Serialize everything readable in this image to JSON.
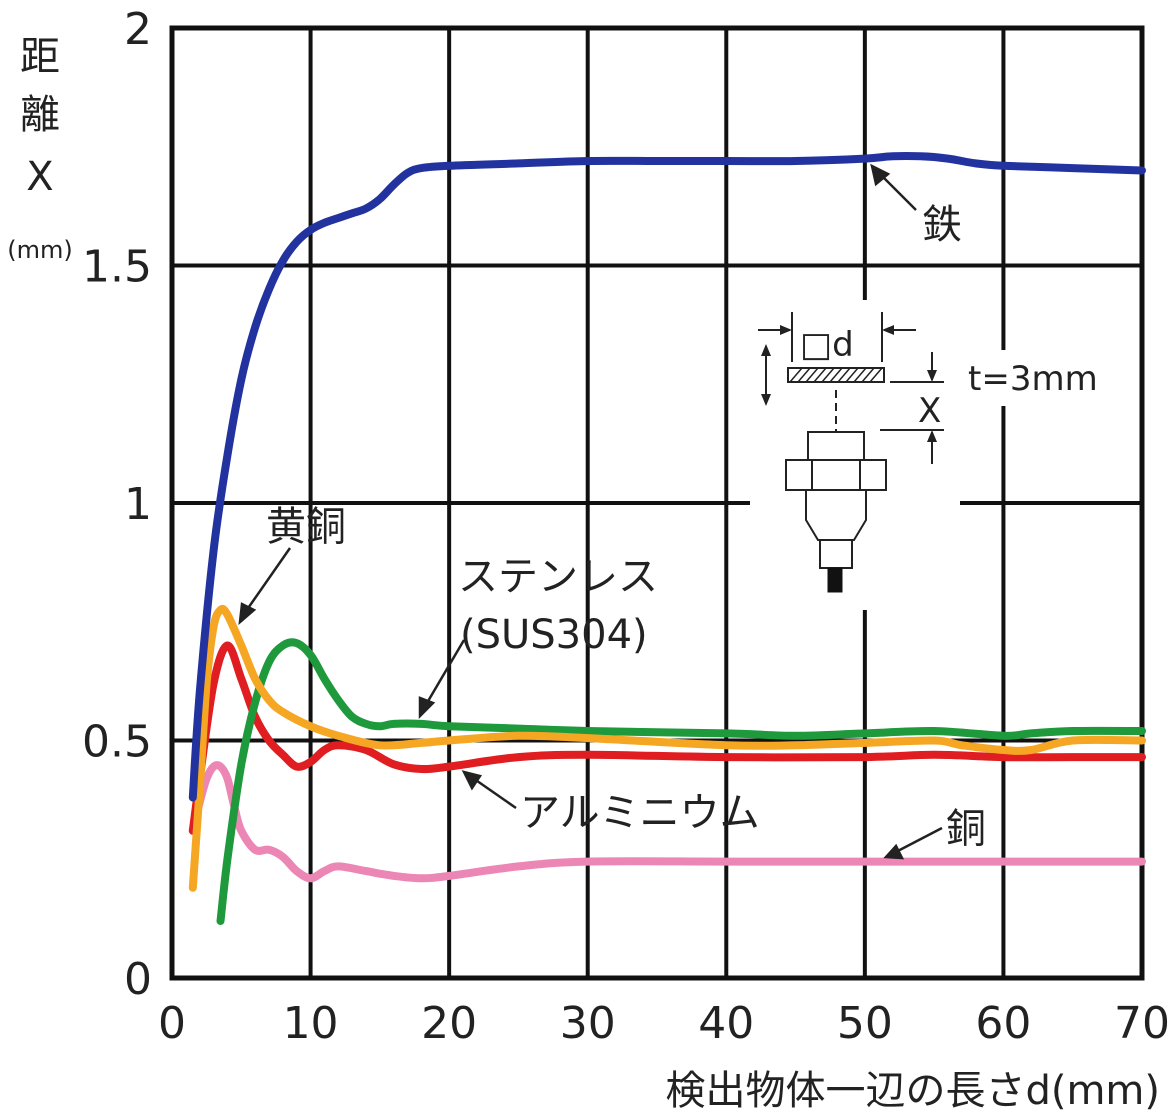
{
  "chart_data": {
    "type": "line",
    "xlabel": "検出物体一辺の長さd(mm)",
    "ylabel_chars": [
      "距",
      "離",
      "X",
      "(mm)"
    ],
    "xlim": [
      0,
      70
    ],
    "ylim": [
      0,
      2
    ],
    "x_ticks": [
      "0",
      "10",
      "20",
      "30",
      "40",
      "50",
      "60",
      "70"
    ],
    "y_ticks": [
      "0",
      "0.5",
      "1",
      "1.5",
      "2"
    ],
    "x_tick_values": [
      0,
      10,
      20,
      30,
      40,
      50,
      60,
      70
    ],
    "y_tick_values": [
      0,
      0.5,
      1,
      1.5,
      2
    ],
    "grid": true,
    "series": [
      {
        "name": "鉄",
        "color": "#2233a0",
        "x": [
          1.5,
          2,
          3,
          4,
          5,
          6,
          7,
          8,
          9,
          10,
          11,
          12,
          13,
          14,
          15,
          16,
          17,
          18,
          20,
          25,
          30,
          35,
          40,
          45,
          50,
          52,
          54,
          56,
          58,
          60,
          65,
          70
        ],
        "y": [
          0.38,
          0.6,
          0.9,
          1.1,
          1.26,
          1.37,
          1.45,
          1.51,
          1.55,
          1.575,
          1.59,
          1.6,
          1.61,
          1.62,
          1.64,
          1.67,
          1.695,
          1.705,
          1.71,
          1.715,
          1.72,
          1.72,
          1.72,
          1.72,
          1.725,
          1.73,
          1.73,
          1.725,
          1.715,
          1.71,
          1.705,
          1.7
        ]
      },
      {
        "name": "黄銅",
        "color": "#f5a623",
        "x": [
          1.5,
          2,
          2.5,
          3,
          3.5,
          4,
          5,
          6,
          7,
          8,
          10,
          12,
          15,
          18,
          20,
          25,
          30,
          40,
          45,
          50,
          55,
          57,
          60,
          62,
          65,
          70
        ],
        "y": [
          0.19,
          0.4,
          0.62,
          0.74,
          0.775,
          0.765,
          0.7,
          0.63,
          0.585,
          0.56,
          0.53,
          0.51,
          0.49,
          0.495,
          0.5,
          0.51,
          0.505,
          0.49,
          0.49,
          0.495,
          0.5,
          0.49,
          0.48,
          0.48,
          0.5,
          0.5
        ]
      },
      {
        "name": "ステンレス(SUS304)",
        "color": "#1e9a3c",
        "x": [
          3.5,
          4,
          5,
          6,
          7,
          8,
          9,
          10,
          11,
          12,
          13,
          14,
          15,
          16,
          18,
          20,
          25,
          30,
          40,
          45,
          50,
          55,
          60,
          62,
          65,
          70
        ],
        "y": [
          0.12,
          0.25,
          0.45,
          0.58,
          0.665,
          0.7,
          0.705,
          0.68,
          0.63,
          0.585,
          0.55,
          0.535,
          0.53,
          0.535,
          0.535,
          0.53,
          0.525,
          0.52,
          0.515,
          0.51,
          0.515,
          0.52,
          0.51,
          0.515,
          0.52,
          0.52
        ]
      },
      {
        "name": "アルミニウム",
        "color": "#e01d20",
        "x": [
          1.5,
          2,
          3,
          4,
          5,
          6,
          7,
          8,
          9,
          10,
          11,
          12,
          14,
          16,
          18,
          20,
          25,
          30,
          40,
          50,
          55,
          60,
          65,
          70
        ],
        "y": [
          0.31,
          0.42,
          0.62,
          0.7,
          0.63,
          0.55,
          0.5,
          0.47,
          0.445,
          0.455,
          0.48,
          0.49,
          0.48,
          0.45,
          0.44,
          0.445,
          0.465,
          0.47,
          0.465,
          0.465,
          0.47,
          0.465,
          0.465,
          0.465
        ]
      },
      {
        "name": "銅",
        "color": "#ec86b4",
        "x": [
          1.5,
          2,
          2.5,
          3,
          3.5,
          4,
          4.5,
          5,
          6,
          7,
          8,
          9,
          10,
          11,
          12,
          14,
          16,
          18,
          20,
          25,
          30,
          40,
          50,
          60,
          70
        ],
        "y": [
          0.31,
          0.37,
          0.42,
          0.445,
          0.445,
          0.42,
          0.36,
          0.31,
          0.27,
          0.27,
          0.255,
          0.225,
          0.21,
          0.225,
          0.235,
          0.225,
          0.215,
          0.21,
          0.215,
          0.235,
          0.245,
          0.245,
          0.245,
          0.245,
          0.245
        ]
      }
    ],
    "annotations": [
      {
        "text": "鉄",
        "series": "鉄"
      },
      {
        "text": "黄銅",
        "series": "黄銅"
      },
      {
        "text": "ステンレス",
        "series": "ステンレス(SUS304)"
      },
      {
        "text": "(SUS304)",
        "series": "ステンレス(SUS304)"
      },
      {
        "text": "アルミニウム",
        "series": "アルミニウム"
      },
      {
        "text": "銅",
        "series": "銅"
      }
    ],
    "inset": {
      "d_label": "□d",
      "t_label": "t=3mm",
      "x_label": "X"
    }
  }
}
